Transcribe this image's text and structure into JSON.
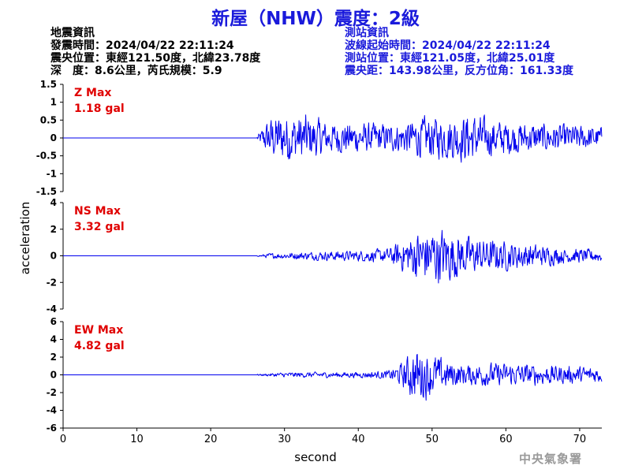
{
  "title": "新屋（NHW）震度：2級",
  "quake_info": {
    "heading": "地震資訊",
    "origin_time": "發震時間：2024/04/22 22:11:24",
    "epicenter": "震央位置：東經121.50度，北緯23.78度",
    "depth_magnitude": "深　度：8.6公里，芮氏規模：5.9"
  },
  "station_info": {
    "heading": "測站資訊",
    "wave_start": "波線起始時間：2024/04/22 22:11:24",
    "location": "測站位置：東經121.05度，北緯25.01度",
    "distance": "震央距：143.98公里，反方位角：161.33度"
  },
  "agency": "中央氣象署",
  "colors": {
    "title": "#1a1adb",
    "trace": "#0000ee",
    "max_label": "#e00000",
    "text": "#000000"
  },
  "chart_data": {
    "type": "line",
    "xlabel": "second",
    "ylabel": "acceleration",
    "xlim": [
      0,
      73
    ],
    "xticks": [
      0,
      10,
      20,
      30,
      40,
      50,
      60,
      70
    ],
    "grid": false,
    "panels": [
      {
        "name": "Z",
        "label": "Z Max",
        "max_text": "1.18 gal",
        "peak": 1.18,
        "ylim": [
          -1.5,
          1.5
        ],
        "yticks": [
          -1.5,
          -1,
          -0.5,
          0,
          0.5,
          1,
          1.5
        ],
        "ytick_labels": [
          "-1.5",
          "-1",
          "-0.5",
          "0",
          "0.5",
          "1",
          "1.5"
        ],
        "onset": 26.3,
        "envelope": [
          [
            26.3,
            0.08
          ],
          [
            28,
            0.75
          ],
          [
            30,
            0.9
          ],
          [
            33,
            0.85
          ],
          [
            36,
            0.55
          ],
          [
            40,
            0.55
          ],
          [
            45,
            0.5
          ],
          [
            49,
            0.75
          ],
          [
            52,
            0.75
          ],
          [
            55,
            0.9
          ],
          [
            58,
            0.65
          ],
          [
            62,
            0.55
          ],
          [
            66,
            0.5
          ],
          [
            70,
            0.45
          ],
          [
            73,
            0.4
          ]
        ]
      },
      {
        "name": "NS",
        "label": "NS Max",
        "max_text": "3.32 gal",
        "peak": 3.32,
        "ylim": [
          -4,
          4
        ],
        "yticks": [
          -4,
          -2,
          0,
          2,
          4
        ],
        "ytick_labels": [
          "-4",
          "-2",
          "0",
          "2",
          "4"
        ],
        "onset": 26.3,
        "envelope": [
          [
            26.3,
            0.05
          ],
          [
            28,
            0.25
          ],
          [
            32,
            0.35
          ],
          [
            36,
            0.45
          ],
          [
            40,
            0.5
          ],
          [
            44,
            0.7
          ],
          [
            46,
            1.5
          ],
          [
            48,
            2.4
          ],
          [
            50,
            2.8
          ],
          [
            52,
            2.6
          ],
          [
            54,
            2.0
          ],
          [
            56,
            1.7
          ],
          [
            60,
            1.4
          ],
          [
            64,
            1.1
          ],
          [
            68,
            0.7
          ],
          [
            73,
            0.6
          ]
        ]
      },
      {
        "name": "EW",
        "label": "EW Max",
        "max_text": "4.82 gal",
        "peak": 4.82,
        "ylim": [
          -6,
          6
        ],
        "yticks": [
          -6,
          -4,
          -2,
          0,
          2,
          4,
          6
        ],
        "ytick_labels": [
          "-6",
          "-4",
          "-2",
          "0",
          "2",
          "4",
          "6"
        ],
        "onset": 26.3,
        "envelope": [
          [
            26.3,
            0.1
          ],
          [
            30,
            0.35
          ],
          [
            35,
            0.4
          ],
          [
            40,
            0.4
          ],
          [
            44,
            0.6
          ],
          [
            46,
            1.8
          ],
          [
            47,
            3.2
          ],
          [
            48,
            4.0
          ],
          [
            50,
            3.0
          ],
          [
            52,
            2.0
          ],
          [
            54,
            1.5
          ],
          [
            58,
            1.7
          ],
          [
            62,
            1.6
          ],
          [
            66,
            1.4
          ],
          [
            70,
            1.2
          ],
          [
            73,
            1.1
          ]
        ]
      }
    ]
  }
}
